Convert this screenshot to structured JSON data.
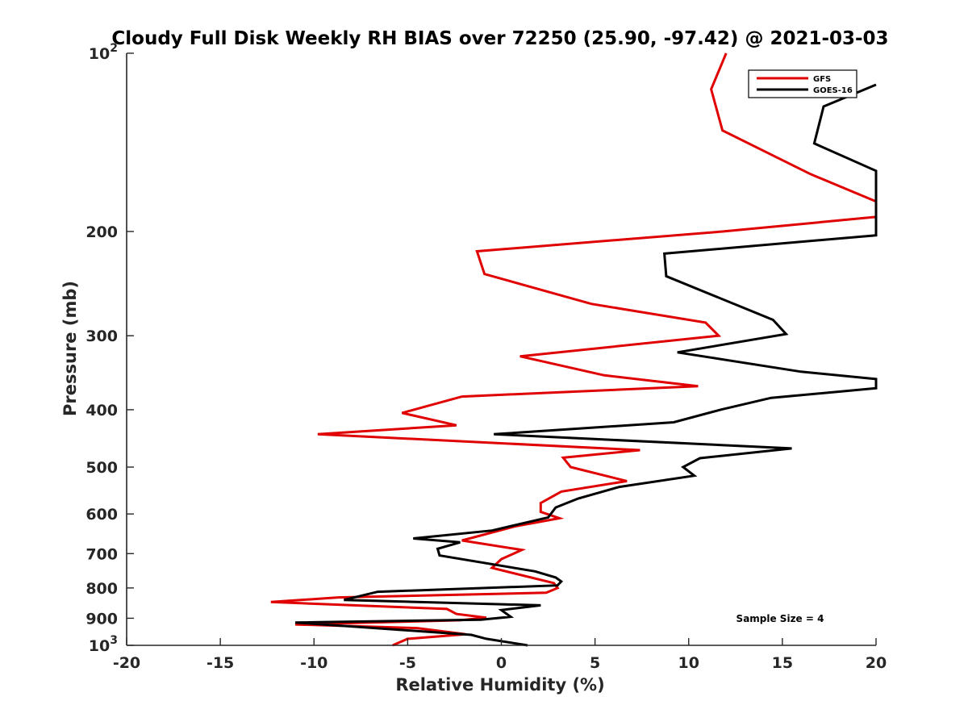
{
  "chart_data": {
    "type": "line",
    "title": "Cloudy Full Disk Weekly RH BIAS over 72250 (25.90, -97.42) @ 2021-03-03",
    "xlabel": "Relative Humidity (%)",
    "ylabel": "Pressure (mb)",
    "xlim": [
      -20,
      20
    ],
    "ylim": [
      100,
      1000
    ],
    "y_scale": "log",
    "y_reversed": true,
    "x_ticks": [
      "-20",
      "-15",
      "-10",
      "-5",
      "0",
      "5",
      "10",
      "15",
      "20"
    ],
    "y_ticks": [
      {
        "value": 100,
        "base": "10",
        "exp": "2"
      },
      {
        "value": 200,
        "label": "200"
      },
      {
        "value": 300,
        "label": "300"
      },
      {
        "value": 400,
        "label": "400"
      },
      {
        "value": 500,
        "label": "500"
      },
      {
        "value": 600,
        "label": "600"
      },
      {
        "value": 700,
        "label": "700"
      },
      {
        "value": 800,
        "label": "800"
      },
      {
        "value": 900,
        "label": "900"
      },
      {
        "value": 1000,
        "base": "10",
        "exp": "3"
      }
    ],
    "grid": false,
    "legend_position": "top-right",
    "annotation": "Sample Size = 4",
    "series": [
      {
        "name": "GFS",
        "color": "#e00000",
        "points": [
          [
            12.0,
            100
          ],
          [
            11.2,
            115
          ],
          [
            11.8,
            135
          ],
          [
            16.5,
            160
          ],
          [
            20.0,
            178
          ],
          [
            20.0,
            189
          ],
          [
            11.8,
            200
          ],
          [
            -1.3,
            216
          ],
          [
            -0.9,
            236
          ],
          [
            4.8,
            265
          ],
          [
            10.9,
            285
          ],
          [
            11.6,
            300
          ],
          [
            1.0,
            325
          ],
          [
            5.5,
            350
          ],
          [
            10.5,
            365
          ],
          [
            -2.1,
            380
          ],
          [
            -5.3,
            405
          ],
          [
            -2.4,
            425
          ],
          [
            -9.8,
            440
          ],
          [
            7.4,
            468
          ],
          [
            3.3,
            482
          ],
          [
            3.7,
            500
          ],
          [
            6.7,
            528
          ],
          [
            3.2,
            550
          ],
          [
            2.1,
            575
          ],
          [
            2.1,
            595
          ],
          [
            3.1,
            610
          ],
          [
            0.7,
            630
          ],
          [
            -2.1,
            665
          ],
          [
            1.1,
            690
          ],
          [
            0.0,
            715
          ],
          [
            -0.5,
            740
          ],
          [
            2.8,
            785
          ],
          [
            3.0,
            800
          ],
          [
            2.4,
            815
          ],
          [
            -8.7,
            830
          ],
          [
            -12.3,
            845
          ],
          [
            -2.9,
            868
          ],
          [
            -2.4,
            885
          ],
          [
            -0.8,
            898
          ],
          [
            -2.2,
            907
          ],
          [
            -11.0,
            922
          ],
          [
            -4.5,
            935
          ],
          [
            -1.9,
            958
          ],
          [
            -5.0,
            975
          ],
          [
            -5.8,
            1000
          ]
        ]
      },
      {
        "name": "GOES-16",
        "color": "#000000",
        "points": [
          [
            20.0,
            113
          ],
          [
            17.2,
            123
          ],
          [
            16.7,
            142
          ],
          [
            20.0,
            158
          ],
          [
            20.0,
            203
          ],
          [
            8.7,
            218
          ],
          [
            8.8,
            238
          ],
          [
            14.5,
            282
          ],
          [
            15.2,
            298
          ],
          [
            9.4,
            320
          ],
          [
            16.0,
            345
          ],
          [
            20.0,
            355
          ],
          [
            20.0,
            368
          ],
          [
            14.4,
            382
          ],
          [
            11.7,
            400
          ],
          [
            9.2,
            420
          ],
          [
            -0.4,
            440
          ],
          [
            15.5,
            465
          ],
          [
            10.6,
            483
          ],
          [
            9.7,
            500
          ],
          [
            10.3,
            517
          ],
          [
            6.3,
            540
          ],
          [
            4.1,
            565
          ],
          [
            2.9,
            585
          ],
          [
            2.5,
            608
          ],
          [
            -0.5,
            640
          ],
          [
            -4.7,
            660
          ],
          [
            -2.2,
            670
          ],
          [
            -3.4,
            687
          ],
          [
            -3.3,
            705
          ],
          [
            1.8,
            750
          ],
          [
            2.9,
            768
          ],
          [
            3.2,
            780
          ],
          [
            3.0,
            792
          ],
          [
            -6.6,
            812
          ],
          [
            -8.4,
            838
          ],
          [
            2.1,
            856
          ],
          [
            0.0,
            872
          ],
          [
            0.5,
            895
          ],
          [
            -1.1,
            905
          ],
          [
            -11.0,
            915
          ],
          [
            -1.6,
            960
          ],
          [
            -0.8,
            975
          ],
          [
            1.4,
            1000
          ]
        ]
      }
    ]
  }
}
